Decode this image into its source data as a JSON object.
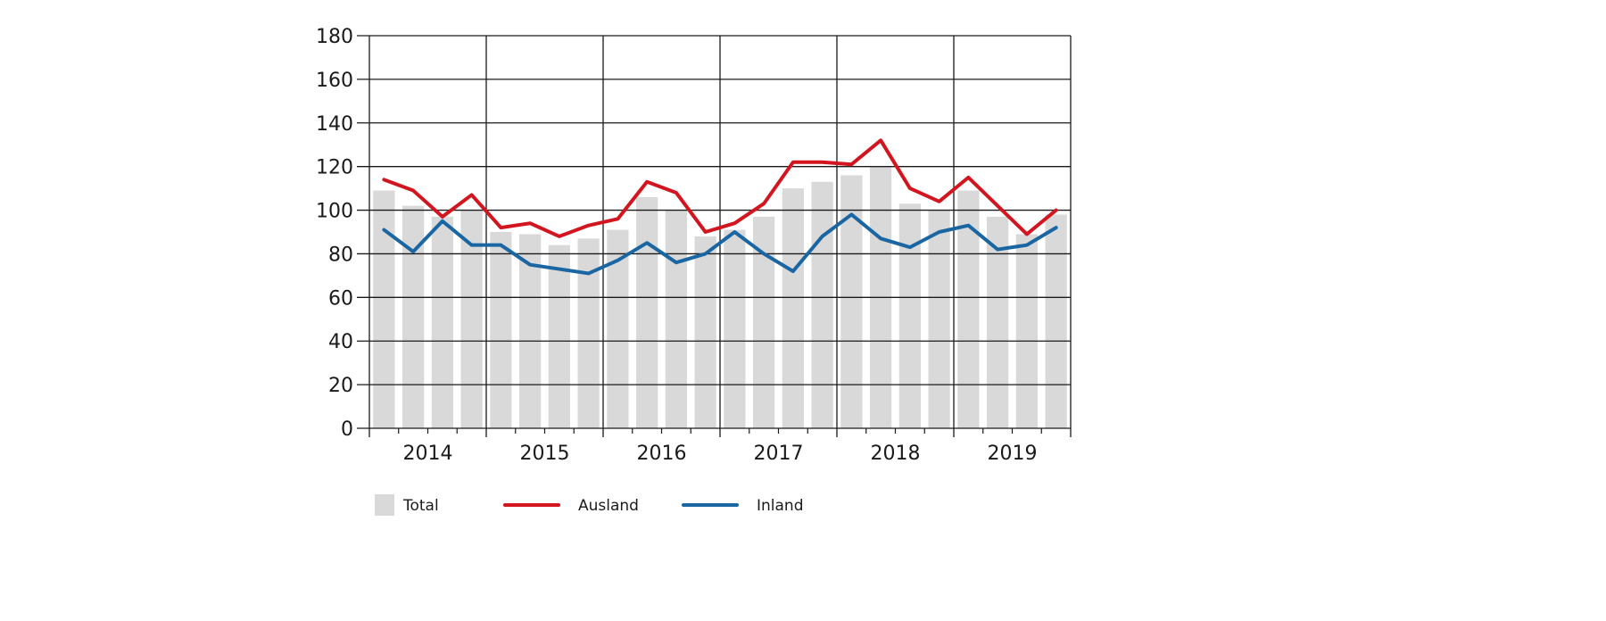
{
  "chart_data": {
    "type": "bar",
    "title": "",
    "xlabel": "",
    "ylabel": "",
    "ylim": [
      0,
      180
    ],
    "yticks": [
      "0",
      "20",
      "40",
      "60",
      "80",
      "100",
      "120",
      "140",
      "160",
      "180"
    ],
    "grid": true,
    "legend_position": "bottom",
    "year_labels": [
      "2014",
      "2015",
      "2016",
      "2017",
      "2018",
      "2019"
    ],
    "x": [
      "2014 Q1",
      "2014 Q2",
      "2014 Q3",
      "2014 Q4",
      "2015 Q1",
      "2015 Q2",
      "2015 Q3",
      "2015 Q4",
      "2016 Q1",
      "2016 Q2",
      "2016 Q3",
      "2016 Q4",
      "2017 Q1",
      "2017 Q2",
      "2017 Q3",
      "2017 Q4",
      "2018 Q1",
      "2018 Q2",
      "2018 Q3",
      "2018 Q4",
      "2019 Q1",
      "2019 Q2",
      "2019 Q3",
      "2019 Q4"
    ],
    "series": [
      {
        "name": "Total",
        "type": "bar",
        "color": "#d9d9d9",
        "values": [
          109,
          102,
          97,
          100,
          90,
          89,
          84,
          87,
          91,
          106,
          100,
          88,
          91,
          97,
          110,
          113,
          116,
          120,
          103,
          100,
          109,
          97,
          89,
          98
        ]
      },
      {
        "name": "Ausland",
        "type": "line",
        "color": "#d2151e",
        "values": [
          114,
          109,
          97,
          107,
          92,
          94,
          88,
          93,
          96,
          113,
          108,
          90,
          94,
          103,
          122,
          122,
          121,
          132,
          110,
          104,
          115,
          102,
          89,
          100
        ]
      },
      {
        "name": "Inland",
        "type": "line",
        "color": "#1a66a3",
        "values": [
          91,
          81,
          95,
          84,
          84,
          75,
          73,
          71,
          77,
          85,
          76,
          80,
          90,
          80,
          72,
          88,
          98,
          87,
          83,
          90,
          93,
          82,
          84,
          92
        ]
      }
    ]
  }
}
